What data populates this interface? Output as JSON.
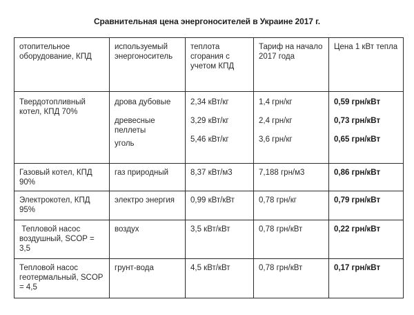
{
  "title": "Сравнительная цена энергоносителей в Украине 2017 г.",
  "table": {
    "headers": [
      "отопительное оборудование, КПД",
      "используемый энергоноситель",
      "теплота сгорания с учетом КПД",
      "Тариф на начало 2017 года",
      "Цена 1 кВт тепла"
    ],
    "rows": [
      {
        "equipment": "Твердотопливный котел, КПД 70%",
        "carriers": [
          "дрова дубовые",
          "древесные пеллеты",
          "уголь"
        ],
        "heat": [
          "2,34 кВт/кг",
          "3,29 кВт/кг",
          "5,46 кВт/кг"
        ],
        "tariff": [
          "1,4 грн/кг",
          "2,4 грн/кг",
          "3,6 грн/кг"
        ],
        "price": [
          "0,59 грн/кВт",
          "0,73 грн/кВт",
          "0,65 грн/кВт"
        ]
      },
      {
        "equipment": "Газовый котел, КПД 90%",
        "carrier": "газ природный",
        "heat": "8,37 кВт/м3",
        "tariff": "7,188 грн/м3",
        "price": "0,86 грн/кВт"
      },
      {
        "equipment": "Электрокотел, КПД 95%",
        "carrier": "электро энергия",
        "heat": "0,99 кВт/кВт",
        "tariff": "0,78 грн/кг",
        "price": "0,79 грн/кВт"
      },
      {
        "equipment": " Тепловой насос воздушный, SCOP = 3,5",
        "carrier": "воздух",
        "heat": "3,5 кВт/кВт",
        "tariff": "0,78 грн/кВт",
        "price": "0,22 грн/кВт"
      },
      {
        "equipment": "Тепловой насос геотермальный, SCOP = 4,5",
        "carrier": "грунт-вода",
        "heat": "4,5 кВт/кВт",
        "tariff": "0,78 грн/кВт",
        "price": "0,17 грн/кВт"
      }
    ]
  }
}
